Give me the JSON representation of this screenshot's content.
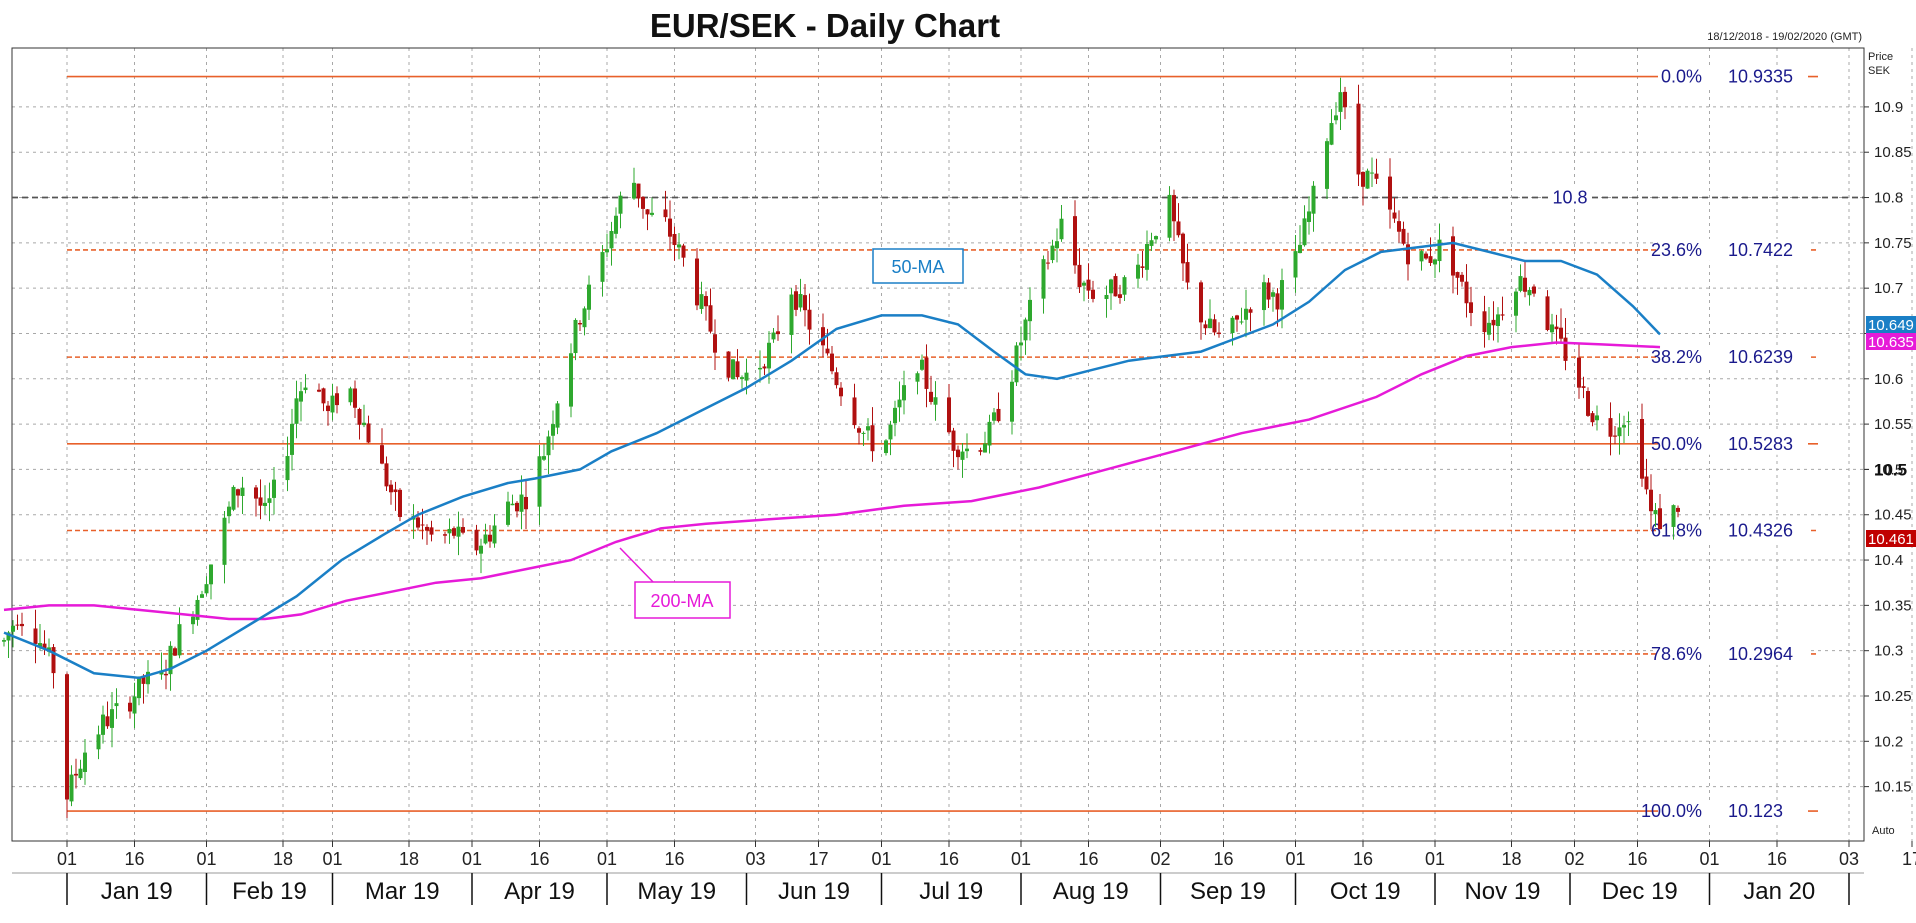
{
  "chart_data": {
    "type": "candlestick",
    "title": "EUR/SEK - Daily Chart",
    "date_range": "18/12/2018 - 19/02/2020 (GMT)",
    "axis_label_price": "Price",
    "axis_label_currency": "SEK",
    "auto_label": "Auto",
    "ylim": [
      10.09,
      10.965
    ],
    "y_ticks": [
      10.15,
      10.2,
      10.25,
      10.3,
      10.35,
      10.4,
      10.45,
      10.5,
      10.55,
      10.6,
      10.65,
      10.7,
      10.75,
      10.8,
      10.85,
      10.9
    ],
    "y_tick_labels": [
      "10.15",
      "10.2",
      "10.25",
      "10.3",
      "10.35",
      "10.4",
      "10.45",
      "10.5",
      "10.55",
      "10.6",
      "10.65",
      "10.7",
      "10.75",
      "10.8",
      "10.85",
      "10.9"
    ],
    "y_bold_tick": {
      "value": 10.5,
      "label": "10.5"
    },
    "x_ticks": [
      {
        "label": "01",
        "day": 14
      },
      {
        "label": "16",
        "day": 29
      },
      {
        "label": "01",
        "day": 45
      },
      {
        "label": "18",
        "day": 62
      },
      {
        "label": "01",
        "day": 73
      },
      {
        "label": "18",
        "day": 90
      },
      {
        "label": "01",
        "day": 104
      },
      {
        "label": "16",
        "day": 119
      },
      {
        "label": "01",
        "day": 134
      },
      {
        "label": "16",
        "day": 149
      },
      {
        "label": "03",
        "day": 167
      },
      {
        "label": "17",
        "day": 181
      },
      {
        "label": "01",
        "day": 195
      },
      {
        "label": "16",
        "day": 210
      },
      {
        "label": "01",
        "day": 226
      },
      {
        "label": "16",
        "day": 241
      },
      {
        "label": "02",
        "day": 257
      },
      {
        "label": "16",
        "day": 271
      },
      {
        "label": "01",
        "day": 287
      },
      {
        "label": "16",
        "day": 302
      },
      {
        "label": "01",
        "day": 318
      },
      {
        "label": "18",
        "day": 335
      },
      {
        "label": "02",
        "day": 349
      },
      {
        "label": "16",
        "day": 363
      },
      {
        "label": "01",
        "day": 379
      },
      {
        "label": "16",
        "day": 394
      },
      {
        "label": "03",
        "day": 410
      },
      {
        "label": "17",
        "day": 424
      }
    ],
    "months": [
      {
        "label": "Jan 19",
        "start": 14,
        "end": 45
      },
      {
        "label": "Feb 19",
        "start": 45,
        "end": 73
      },
      {
        "label": "Mar 19",
        "start": 73,
        "end": 104
      },
      {
        "label": "Apr 19",
        "start": 104,
        "end": 134
      },
      {
        "label": "May 19",
        "start": 134,
        "end": 165
      },
      {
        "label": "Jun 19",
        "start": 165,
        "end": 195
      },
      {
        "label": "Jul 19",
        "start": 195,
        "end": 226
      },
      {
        "label": "Aug 19",
        "start": 226,
        "end": 257
      },
      {
        "label": "Sep 19",
        "start": 257,
        "end": 287
      },
      {
        "label": "Oct 19",
        "start": 287,
        "end": 318
      },
      {
        "label": "Nov 19",
        "start": 318,
        "end": 348
      },
      {
        "label": "Dec 19",
        "start": 348,
        "end": 379
      },
      {
        "label": "Jan 20",
        "start": 379,
        "end": 410
      }
    ],
    "fib_levels": [
      {
        "pct": "0.0%",
        "value": 10.9335,
        "label": "10.9335",
        "style": "solid"
      },
      {
        "pct": "23.6%",
        "value": 10.7422,
        "label": "10.7422",
        "style": "dashed"
      },
      {
        "pct": "38.2%",
        "value": 10.6239,
        "label": "10.6239",
        "style": "dashed"
      },
      {
        "pct": "50.0%",
        "value": 10.5283,
        "label": "10.5283",
        "style": "solid"
      },
      {
        "pct": "61.8%",
        "value": 10.4326,
        "label": "10.4326",
        "style": "dashed"
      },
      {
        "pct": "78.6%",
        "value": 10.2964,
        "label": "10.2964",
        "style": "dashed"
      },
      {
        "pct": "100.0%",
        "value": 10.123,
        "label": "10.123",
        "style": "solid"
      }
    ],
    "resistance_level": {
      "value": 10.8,
      "label": "10.8"
    },
    "ma50": {
      "name": "50-MA",
      "last_value": "10.649",
      "points": [
        [
          0,
          10.32
        ],
        [
          10,
          10.3
        ],
        [
          20,
          10.275
        ],
        [
          30,
          10.27
        ],
        [
          37,
          10.28
        ],
        [
          45,
          10.3
        ],
        [
          55,
          10.33
        ],
        [
          65,
          10.36
        ],
        [
          75,
          10.4
        ],
        [
          85,
          10.43
        ],
        [
          92,
          10.45
        ],
        [
          102,
          10.47
        ],
        [
          112,
          10.485
        ],
        [
          118,
          10.49
        ],
        [
          128,
          10.5
        ],
        [
          135,
          10.52
        ],
        [
          145,
          10.54
        ],
        [
          155,
          10.565
        ],
        [
          165,
          10.59
        ],
        [
          175,
          10.62
        ],
        [
          185,
          10.655
        ],
        [
          195,
          10.67
        ],
        [
          204,
          10.67
        ],
        [
          212,
          10.66
        ],
        [
          220,
          10.63
        ],
        [
          227,
          10.605
        ],
        [
          234,
          10.6
        ],
        [
          242,
          10.61
        ],
        [
          250,
          10.62
        ],
        [
          258,
          10.625
        ],
        [
          266,
          10.63
        ],
        [
          274,
          10.645
        ],
        [
          282,
          10.66
        ],
        [
          290,
          10.685
        ],
        [
          298,
          10.72
        ],
        [
          306,
          10.74
        ],
        [
          314,
          10.745
        ],
        [
          322,
          10.75
        ],
        [
          330,
          10.74
        ],
        [
          338,
          10.73
        ],
        [
          346,
          10.73
        ],
        [
          354,
          10.715
        ],
        [
          362,
          10.68
        ],
        [
          368,
          10.649
        ]
      ]
    },
    "ma200": {
      "name": "200-MA",
      "last_value": "10.635",
      "points": [
        [
          0,
          10.345
        ],
        [
          10,
          10.35
        ],
        [
          20,
          10.35
        ],
        [
          30,
          10.345
        ],
        [
          40,
          10.34
        ],
        [
          50,
          10.335
        ],
        [
          58,
          10.335
        ],
        [
          66,
          10.34
        ],
        [
          76,
          10.355
        ],
        [
          86,
          10.365
        ],
        [
          96,
          10.375
        ],
        [
          106,
          10.38
        ],
        [
          116,
          10.39
        ],
        [
          126,
          10.4
        ],
        [
          136,
          10.42
        ],
        [
          146,
          10.435
        ],
        [
          156,
          10.44
        ],
        [
          170,
          10.445
        ],
        [
          185,
          10.45
        ],
        [
          200,
          10.46
        ],
        [
          215,
          10.465
        ],
        [
          230,
          10.48
        ],
        [
          245,
          10.5
        ],
        [
          260,
          10.52
        ],
        [
          275,
          10.54
        ],
        [
          290,
          10.555
        ],
        [
          305,
          10.58
        ],
        [
          315,
          10.605
        ],
        [
          325,
          10.625
        ],
        [
          335,
          10.635
        ],
        [
          345,
          10.64
        ],
        [
          355,
          10.638
        ],
        [
          368,
          10.635
        ]
      ]
    },
    "last_price": "10.461",
    "anchors": [
      [
        0,
        10.31
      ],
      [
        3,
        10.34
      ],
      [
        6,
        10.33
      ],
      [
        9,
        10.3
      ],
      [
        12,
        10.27
      ],
      [
        14,
        10.14
      ],
      [
        18,
        10.19
      ],
      [
        22,
        10.22
      ],
      [
        27,
        10.24
      ],
      [
        31,
        10.265
      ],
      [
        35,
        10.27
      ],
      [
        39,
        10.32
      ],
      [
        43,
        10.36
      ],
      [
        47,
        10.41
      ],
      [
        51,
        10.47
      ],
      [
        54,
        10.49
      ],
      [
        58,
        10.45
      ],
      [
        62,
        10.5
      ],
      [
        65,
        10.58
      ],
      [
        68,
        10.61
      ],
      [
        72,
        10.56
      ],
      [
        76,
        10.6
      ],
      [
        80,
        10.55
      ],
      [
        84,
        10.5
      ],
      [
        88,
        10.45
      ],
      [
        92,
        10.44
      ],
      [
        96,
        10.42
      ],
      [
        100,
        10.43
      ],
      [
        104,
        10.41
      ],
      [
        108,
        10.43
      ],
      [
        112,
        10.46
      ],
      [
        116,
        10.47
      ],
      [
        120,
        10.52
      ],
      [
        124,
        10.6
      ],
      [
        128,
        10.67
      ],
      [
        132,
        10.72
      ],
      [
        136,
        10.78
      ],
      [
        139,
        10.83
      ],
      [
        143,
        10.78
      ],
      [
        147,
        10.77
      ],
      [
        151,
        10.73
      ],
      [
        155,
        10.68
      ],
      [
        159,
        10.63
      ],
      [
        163,
        10.6
      ],
      [
        167,
        10.61
      ],
      [
        171,
        10.64
      ],
      [
        175,
        10.7
      ],
      [
        179,
        10.66
      ],
      [
        183,
        10.62
      ],
      [
        187,
        10.58
      ],
      [
        191,
        10.54
      ],
      [
        195,
        10.52
      ],
      [
        199,
        10.57
      ],
      [
        203,
        10.62
      ],
      [
        207,
        10.57
      ],
      [
        211,
        10.53
      ],
      [
        215,
        10.52
      ],
      [
        219,
        10.54
      ],
      [
        223,
        10.59
      ],
      [
        227,
        10.66
      ],
      [
        231,
        10.72
      ],
      [
        235,
        10.77
      ],
      [
        239,
        10.71
      ],
      [
        243,
        10.69
      ],
      [
        247,
        10.7
      ],
      [
        251,
        10.71
      ],
      [
        255,
        10.76
      ],
      [
        259,
        10.79
      ],
      [
        263,
        10.7
      ],
      [
        267,
        10.66
      ],
      [
        271,
        10.64
      ],
      [
        275,
        10.67
      ],
      [
        279,
        10.7
      ],
      [
        283,
        10.69
      ],
      [
        287,
        10.73
      ],
      [
        291,
        10.8
      ],
      [
        294,
        10.87
      ],
      [
        297,
        10.92
      ],
      [
        300,
        10.83
      ],
      [
        304,
        10.82
      ],
      [
        308,
        10.78
      ],
      [
        312,
        10.74
      ],
      [
        316,
        10.73
      ],
      [
        320,
        10.75
      ],
      [
        324,
        10.7
      ],
      [
        328,
        10.66
      ],
      [
        332,
        10.67
      ],
      [
        336,
        10.71
      ],
      [
        340,
        10.7
      ],
      [
        344,
        10.65
      ],
      [
        348,
        10.62
      ],
      [
        352,
        10.57
      ],
      [
        356,
        10.54
      ],
      [
        360,
        10.56
      ],
      [
        363,
        10.53
      ],
      [
        366,
        10.45
      ],
      [
        369,
        10.44
      ],
      [
        372,
        10.461
      ]
    ]
  }
}
